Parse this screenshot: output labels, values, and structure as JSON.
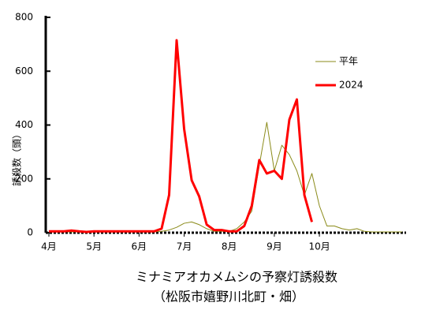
{
  "chart_data": {
    "type": "line",
    "title": "ミナミアオカメムシの予察灯誘殺数",
    "subtitle": "（松阪市嬉野川北町・畑）",
    "y_label": "誘殺数（頭）",
    "categories": [
      "4月",
      null,
      null,
      null,
      null,
      null,
      "5月",
      null,
      null,
      null,
      null,
      null,
      "6月",
      null,
      null,
      null,
      null,
      null,
      "7月",
      null,
      null,
      null,
      null,
      null,
      "8月",
      null,
      null,
      null,
      null,
      null,
      "9月",
      null,
      null,
      null,
      null,
      null,
      "10月",
      null,
      null,
      null,
      null,
      null,
      null,
      null,
      null,
      null,
      null,
      null
    ],
    "series": [
      {
        "name": "平年",
        "color": "#8b8b1a",
        "width": 1,
        "values": [
          3,
          3,
          3,
          3,
          3,
          3,
          3,
          3,
          3,
          3,
          3,
          3,
          3,
          3,
          3,
          5,
          10,
          20,
          35,
          40,
          30,
          15,
          5,
          5,
          5,
          15,
          40,
          80,
          250,
          410,
          230,
          325,
          290,
          230,
          140,
          220,
          100,
          25,
          25,
          15,
          10,
          15,
          5,
          3,
          3,
          3,
          3,
          3
        ]
      },
      {
        "name": "2024",
        "color": "#ff0000",
        "width": 3,
        "values": [
          5,
          5,
          5,
          8,
          5,
          3,
          5,
          5,
          5,
          5,
          5,
          5,
          5,
          5,
          5,
          15,
          140,
          715,
          385,
          195,
          135,
          30,
          10,
          10,
          5,
          5,
          25,
          100,
          270,
          220,
          230,
          200,
          420,
          495,
          140,
          40,
          null,
          null,
          null,
          null,
          null,
          null,
          null,
          null,
          null,
          null,
          null,
          null
        ]
      }
    ],
    "ylim": [
      0,
      800
    ],
    "yticks": [
      0,
      200,
      400,
      600,
      800
    ],
    "legend": "upper-right"
  }
}
